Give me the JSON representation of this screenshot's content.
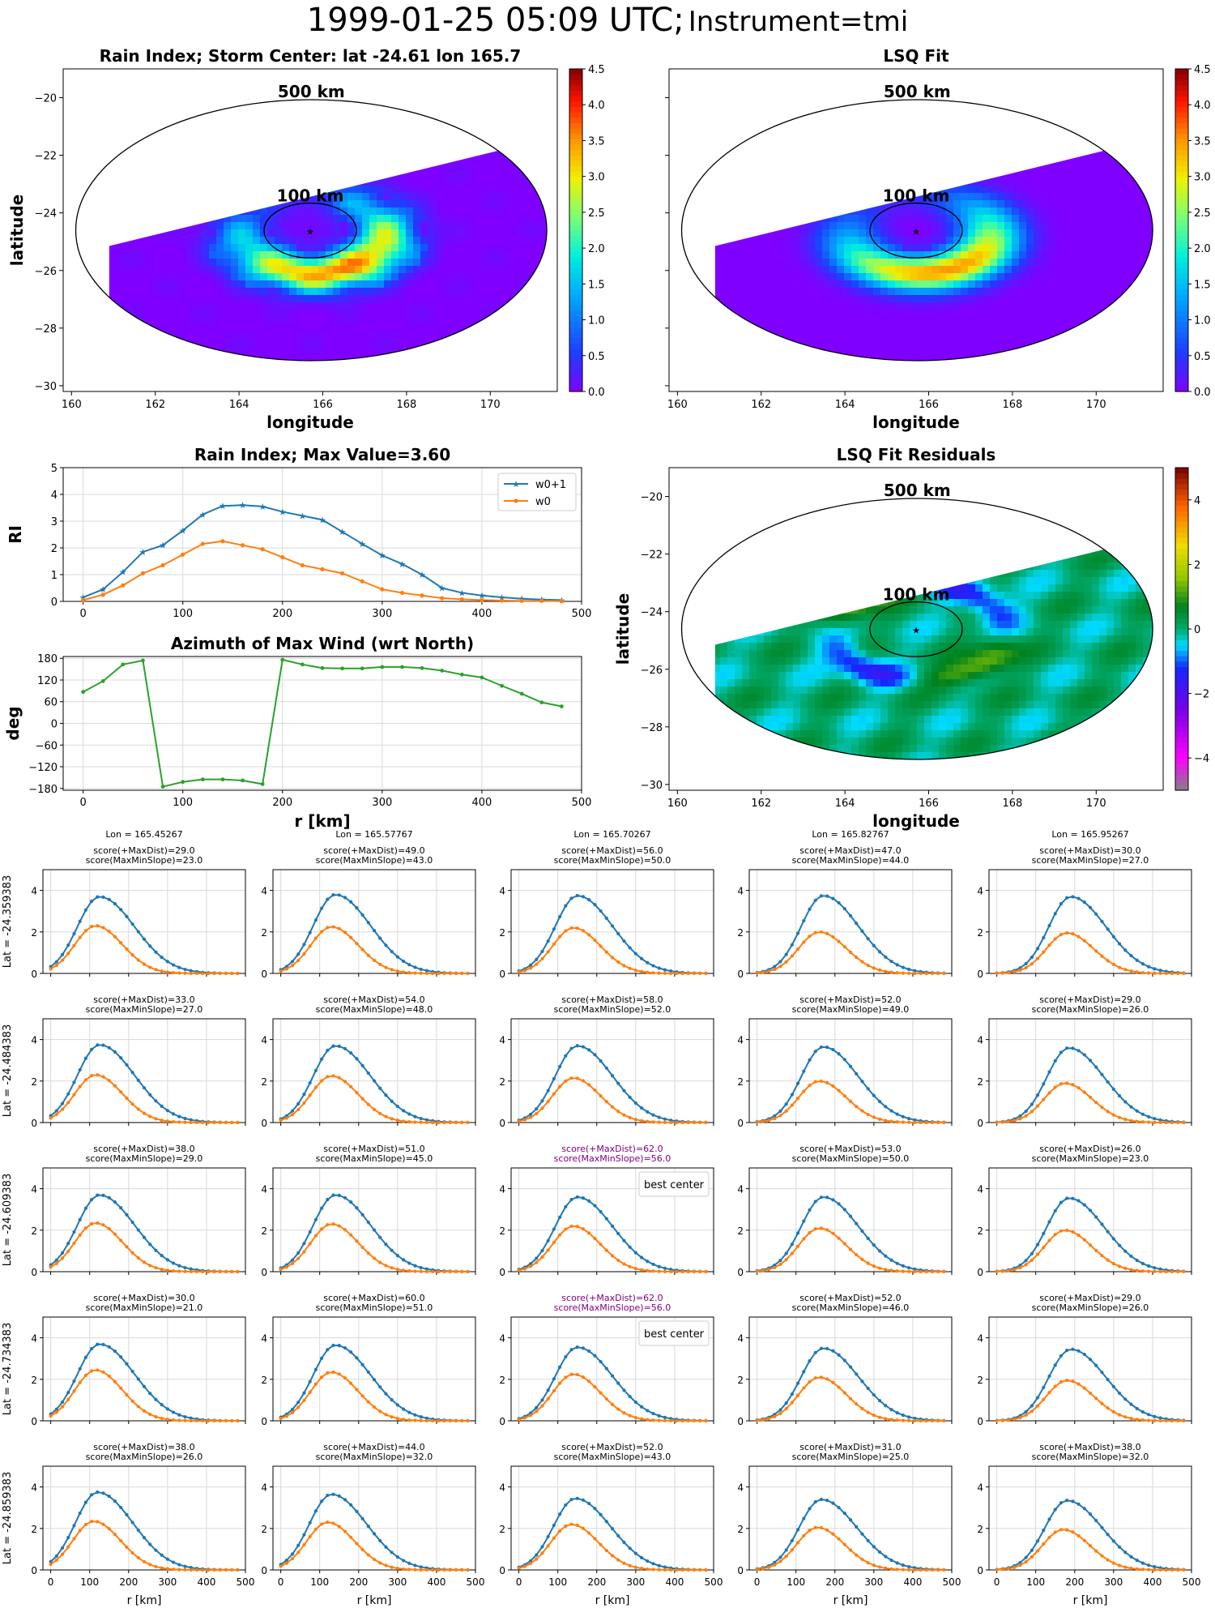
{
  "figure": {
    "suptitle_main": "1999-01-25 05:09 UTC;",
    "suptitle_sub": "Instrument=tmi"
  },
  "colors": {
    "w0p1": "#1f77b4",
    "w0": "#ff7f0e",
    "azimuth": "#2ca02c",
    "best": "#800080",
    "grid": "#d9d9d9"
  },
  "maps": [
    {
      "id": "rain-index-map",
      "title": "Rain Index; Storm Center: lat -24.61 lon 165.7",
      "xlabel": "longitude",
      "ylabel": "latitude",
      "xticks": [
        "160",
        "162",
        "164",
        "166",
        "168",
        "170"
      ],
      "yticks": [
        "−20",
        "−22",
        "−24",
        "−26",
        "−28",
        "−30"
      ],
      "xlim": [
        159.8,
        171.6
      ],
      "ylim": [
        -30.2,
        -19.0
      ],
      "center": {
        "lon": 165.7,
        "lat": -24.61
      },
      "ring_labels": [
        "500 km",
        "100 km"
      ],
      "colormap": "jet",
      "colorbar": {
        "min": 0.0,
        "max": 4.5,
        "ticks": [
          "0.0",
          "0.5",
          "1.0",
          "1.5",
          "2.0",
          "2.5",
          "3.0",
          "3.5",
          "4.0",
          "4.5"
        ]
      }
    },
    {
      "id": "lsq-fit-map",
      "title": "LSQ Fit",
      "xlabel": "longitude",
      "ylabel": "",
      "xticks": [
        "160",
        "162",
        "164",
        "166",
        "168",
        "170"
      ],
      "yticks": [],
      "xlim": [
        159.8,
        171.6
      ],
      "ylim": [
        -30.2,
        -19.0
      ],
      "center": {
        "lon": 165.7,
        "lat": -24.61
      },
      "ring_labels": [
        "500 km",
        "100 km"
      ],
      "colormap": "jet",
      "colorbar": {
        "min": 0.0,
        "max": 4.5,
        "ticks": [
          "0.0",
          "0.5",
          "1.0",
          "1.5",
          "2.0",
          "2.5",
          "3.0",
          "3.5",
          "4.0",
          "4.5"
        ]
      }
    },
    {
      "id": "lsq-residuals-map",
      "title": "LSQ Fit Residuals",
      "xlabel": "longitude",
      "ylabel": "latitude",
      "xticks": [
        "160",
        "162",
        "164",
        "166",
        "168",
        "170"
      ],
      "yticks": [
        "−20",
        "−22",
        "−24",
        "−26",
        "−28",
        "−30"
      ],
      "xlim": [
        159.8,
        171.6
      ],
      "ylim": [
        -30.2,
        -19.0
      ],
      "center": {
        "lon": 165.7,
        "lat": -24.61
      },
      "ring_labels": [
        "500 km",
        "100 km"
      ],
      "colormap": "diverging",
      "colorbar": {
        "min": -5,
        "max": 5,
        "ticks": [
          "−4",
          "−2",
          "0",
          "2",
          "4"
        ]
      }
    }
  ],
  "chart_data": [
    {
      "type": "line",
      "id": "rain-index-profile",
      "title": "Rain Index; Max Value=3.60",
      "xlabel": "",
      "ylabel": "RI",
      "xlim": [
        -20,
        500
      ],
      "ylim": [
        0,
        5
      ],
      "xticks": [
        "0",
        "100",
        "200",
        "300",
        "400",
        "500"
      ],
      "yticks": [
        "0",
        "1",
        "2",
        "3",
        "4",
        "5"
      ],
      "legend_position": "top-right",
      "grid": true,
      "x": [
        0,
        20,
        40,
        60,
        80,
        100,
        120,
        140,
        160,
        180,
        200,
        220,
        240,
        260,
        280,
        300,
        320,
        340,
        360,
        380,
        400,
        420,
        440,
        460,
        480
      ],
      "series": [
        {
          "name": "w0+1",
          "marker": "star",
          "values": [
            0.15,
            0.45,
            1.1,
            1.85,
            2.1,
            2.65,
            3.25,
            3.57,
            3.6,
            3.55,
            3.35,
            3.2,
            3.05,
            2.6,
            2.15,
            1.72,
            1.4,
            1.0,
            0.5,
            0.32,
            0.22,
            0.15,
            0.1,
            0.07,
            0.05
          ]
        },
        {
          "name": "w0",
          "marker": "dot",
          "values": [
            0.05,
            0.25,
            0.6,
            1.05,
            1.35,
            1.75,
            2.15,
            2.25,
            2.1,
            1.95,
            1.65,
            1.35,
            1.2,
            1.05,
            0.75,
            0.45,
            0.32,
            0.22,
            0.12,
            0.08,
            0.05,
            0.03,
            0.02,
            0.02,
            0.01
          ]
        }
      ]
    },
    {
      "type": "line",
      "id": "azimuth-max-wind",
      "title": "Azimuth of Max Wind (wrt North)",
      "xlabel": "r [km]",
      "ylabel": "deg",
      "xlim": [
        -20,
        500
      ],
      "ylim": [
        -185,
        185
      ],
      "xticks": [
        "0",
        "100",
        "200",
        "300",
        "400",
        "500"
      ],
      "yticks": [
        "180",
        "120",
        "60",
        "0",
        "−60",
        "−120",
        "−180"
      ],
      "grid": true,
      "x": [
        0,
        20,
        40,
        60,
        80,
        100,
        120,
        140,
        160,
        180,
        200,
        220,
        240,
        260,
        280,
        300,
        320,
        340,
        360,
        380,
        400,
        420,
        440,
        460,
        480
      ],
      "series": [
        {
          "values": [
            87,
            117,
            163,
            174,
            -175,
            -162,
            -155,
            -155,
            -158,
            -168,
            176,
            163,
            153,
            152,
            152,
            156,
            156,
            153,
            146,
            135,
            127,
            104,
            82,
            58,
            47
          ]
        }
      ]
    },
    {
      "type": "line",
      "id": "center-grid",
      "xlabel": "r [km]",
      "xlim": [
        -20,
        500
      ],
      "ylim": [
        0,
        5
      ],
      "xticks": [
        "0",
        "100",
        "200",
        "300",
        "400",
        "500"
      ],
      "yticks": [
        "0",
        "2",
        "4"
      ],
      "lons": [
        "Lon = 165.45267",
        "Lon = 165.57767",
        "Lon = 165.70267",
        "Lon = 165.82767",
        "Lon = 165.95267"
      ],
      "lats": [
        "Lat = -24.359383",
        "Lat = -24.484383",
        "Lat = -24.609383",
        "Lat = -24.734383",
        "Lat = -24.859383"
      ],
      "best_label": "best center",
      "rows": [
        [
          {
            "s1": "score(+MaxDist)=29.0",
            "s2": "score(MaxMinSlope)=23.0",
            "peak": 3.7,
            "center": 125,
            "w0": 2.3
          },
          {
            "s1": "score(+MaxDist)=49.0",
            "s2": "score(MaxMinSlope)=43.0",
            "peak": 3.8,
            "center": 140,
            "w0": 2.25
          },
          {
            "s1": "score(+MaxDist)=56.0",
            "s2": "score(MaxMinSlope)=50.0",
            "peak": 3.75,
            "center": 150,
            "w0": 2.2
          },
          {
            "s1": "score(+MaxDist)=47.0",
            "s2": "score(MaxMinSlope)=44.0",
            "peak": 3.75,
            "center": 170,
            "w0": 2.0
          },
          {
            "s1": "score(+MaxDist)=30.0",
            "s2": "score(MaxMinSlope)=27.0",
            "peak": 3.7,
            "center": 190,
            "w0": 1.95
          }
        ],
        [
          {
            "s1": "score(+MaxDist)=33.0",
            "s2": "score(MaxMinSlope)=27.0",
            "peak": 3.75,
            "center": 125,
            "w0": 2.3
          },
          {
            "s1": "score(+MaxDist)=54.0",
            "s2": "score(MaxMinSlope)=48.0",
            "peak": 3.7,
            "center": 140,
            "w0": 2.25
          },
          {
            "s1": "score(+MaxDist)=58.0",
            "s2": "score(MaxMinSlope)=52.0",
            "peak": 3.7,
            "center": 150,
            "w0": 2.15
          },
          {
            "s1": "score(+MaxDist)=52.0",
            "s2": "score(MaxMinSlope)=49.0",
            "peak": 3.65,
            "center": 170,
            "w0": 2.0
          },
          {
            "s1": "score(+MaxDist)=29.0",
            "s2": "score(MaxMinSlope)=26.0",
            "peak": 3.6,
            "center": 185,
            "w0": 1.9
          }
        ],
        [
          {
            "s1": "score(+MaxDist)=38.0",
            "s2": "score(MaxMinSlope)=29.0",
            "peak": 3.7,
            "center": 125,
            "w0": 2.35
          },
          {
            "s1": "score(+MaxDist)=51.0",
            "s2": "score(MaxMinSlope)=45.0",
            "peak": 3.7,
            "center": 140,
            "w0": 2.3
          },
          {
            "s1": "score(+MaxDist)=62.0",
            "s2": "score(MaxMinSlope)=56.0",
            "peak": 3.6,
            "center": 150,
            "w0": 2.2,
            "best": true
          },
          {
            "s1": "score(+MaxDist)=53.0",
            "s2": "score(MaxMinSlope)=50.0",
            "peak": 3.6,
            "center": 170,
            "w0": 2.1
          },
          {
            "s1": "score(+MaxDist)=26.0",
            "s2": "score(MaxMinSlope)=23.0",
            "peak": 3.55,
            "center": 185,
            "w0": 2.0
          }
        ],
        [
          {
            "s1": "score(+MaxDist)=30.0",
            "s2": "score(MaxMinSlope)=21.0",
            "peak": 3.7,
            "center": 125,
            "w0": 2.45
          },
          {
            "s1": "score(+MaxDist)=60.0",
            "s2": "score(MaxMinSlope)=51.0",
            "peak": 3.65,
            "center": 140,
            "w0": 2.35
          },
          {
            "s1": "score(+MaxDist)=62.0",
            "s2": "score(MaxMinSlope)=56.0",
            "peak": 3.55,
            "center": 150,
            "w0": 2.25,
            "best": true
          },
          {
            "s1": "score(+MaxDist)=52.0",
            "s2": "score(MaxMinSlope)=46.0",
            "peak": 3.5,
            "center": 170,
            "w0": 2.1
          },
          {
            "s1": "score(+MaxDist)=29.0",
            "s2": "score(MaxMinSlope)=26.0",
            "peak": 3.45,
            "center": 190,
            "w0": 1.95
          }
        ],
        [
          {
            "s1": "score(+MaxDist)=38.0",
            "s2": "score(MaxMinSlope)=26.0",
            "peak": 3.75,
            "center": 120,
            "w0": 2.35
          },
          {
            "s1": "score(+MaxDist)=44.0",
            "s2": "score(MaxMinSlope)=32.0",
            "peak": 3.65,
            "center": 130,
            "w0": 2.3
          },
          {
            "s1": "score(+MaxDist)=52.0",
            "s2": "score(MaxMinSlope)=43.0",
            "peak": 3.45,
            "center": 145,
            "w0": 2.2
          },
          {
            "s1": "score(+MaxDist)=31.0",
            "s2": "score(MaxMinSlope)=25.0",
            "peak": 3.4,
            "center": 165,
            "w0": 2.05
          },
          {
            "s1": "score(+MaxDist)=38.0",
            "s2": "score(MaxMinSlope)=32.0",
            "peak": 3.35,
            "center": 180,
            "w0": 1.95
          }
        ]
      ]
    }
  ]
}
